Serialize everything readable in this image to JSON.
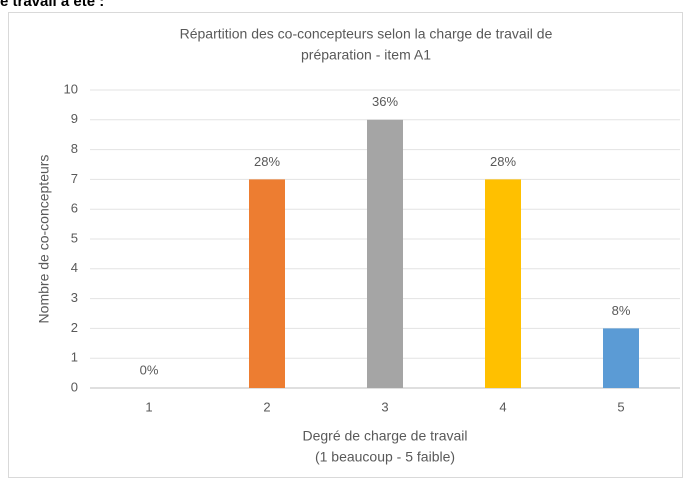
{
  "header_text": "e travail a été :",
  "chart_data": {
    "type": "bar",
    "title": [
      "Répartition des co-concepteurs selon la charge de travail de",
      "préparation - item A1"
    ],
    "x_label": [
      "Degré de charge de travail",
      "(1 beaucoup - 5 faible)"
    ],
    "y_label": "Nombre de co-concepteurs",
    "categories": [
      "1",
      "2",
      "3",
      "4",
      "5"
    ],
    "values": [
      0,
      7,
      9,
      7,
      2
    ],
    "value_labels": [
      "0%",
      "28%",
      "36%",
      "28%",
      "8%"
    ],
    "colors": [
      "#5b9bd5",
      "#ed7d31",
      "#a5a5a5",
      "#ffc000",
      "#5b9bd5"
    ],
    "ylim": [
      0,
      10
    ],
    "yticks": [
      0,
      1,
      2,
      3,
      4,
      5,
      6,
      7,
      8,
      9,
      10
    ],
    "grid": true
  }
}
